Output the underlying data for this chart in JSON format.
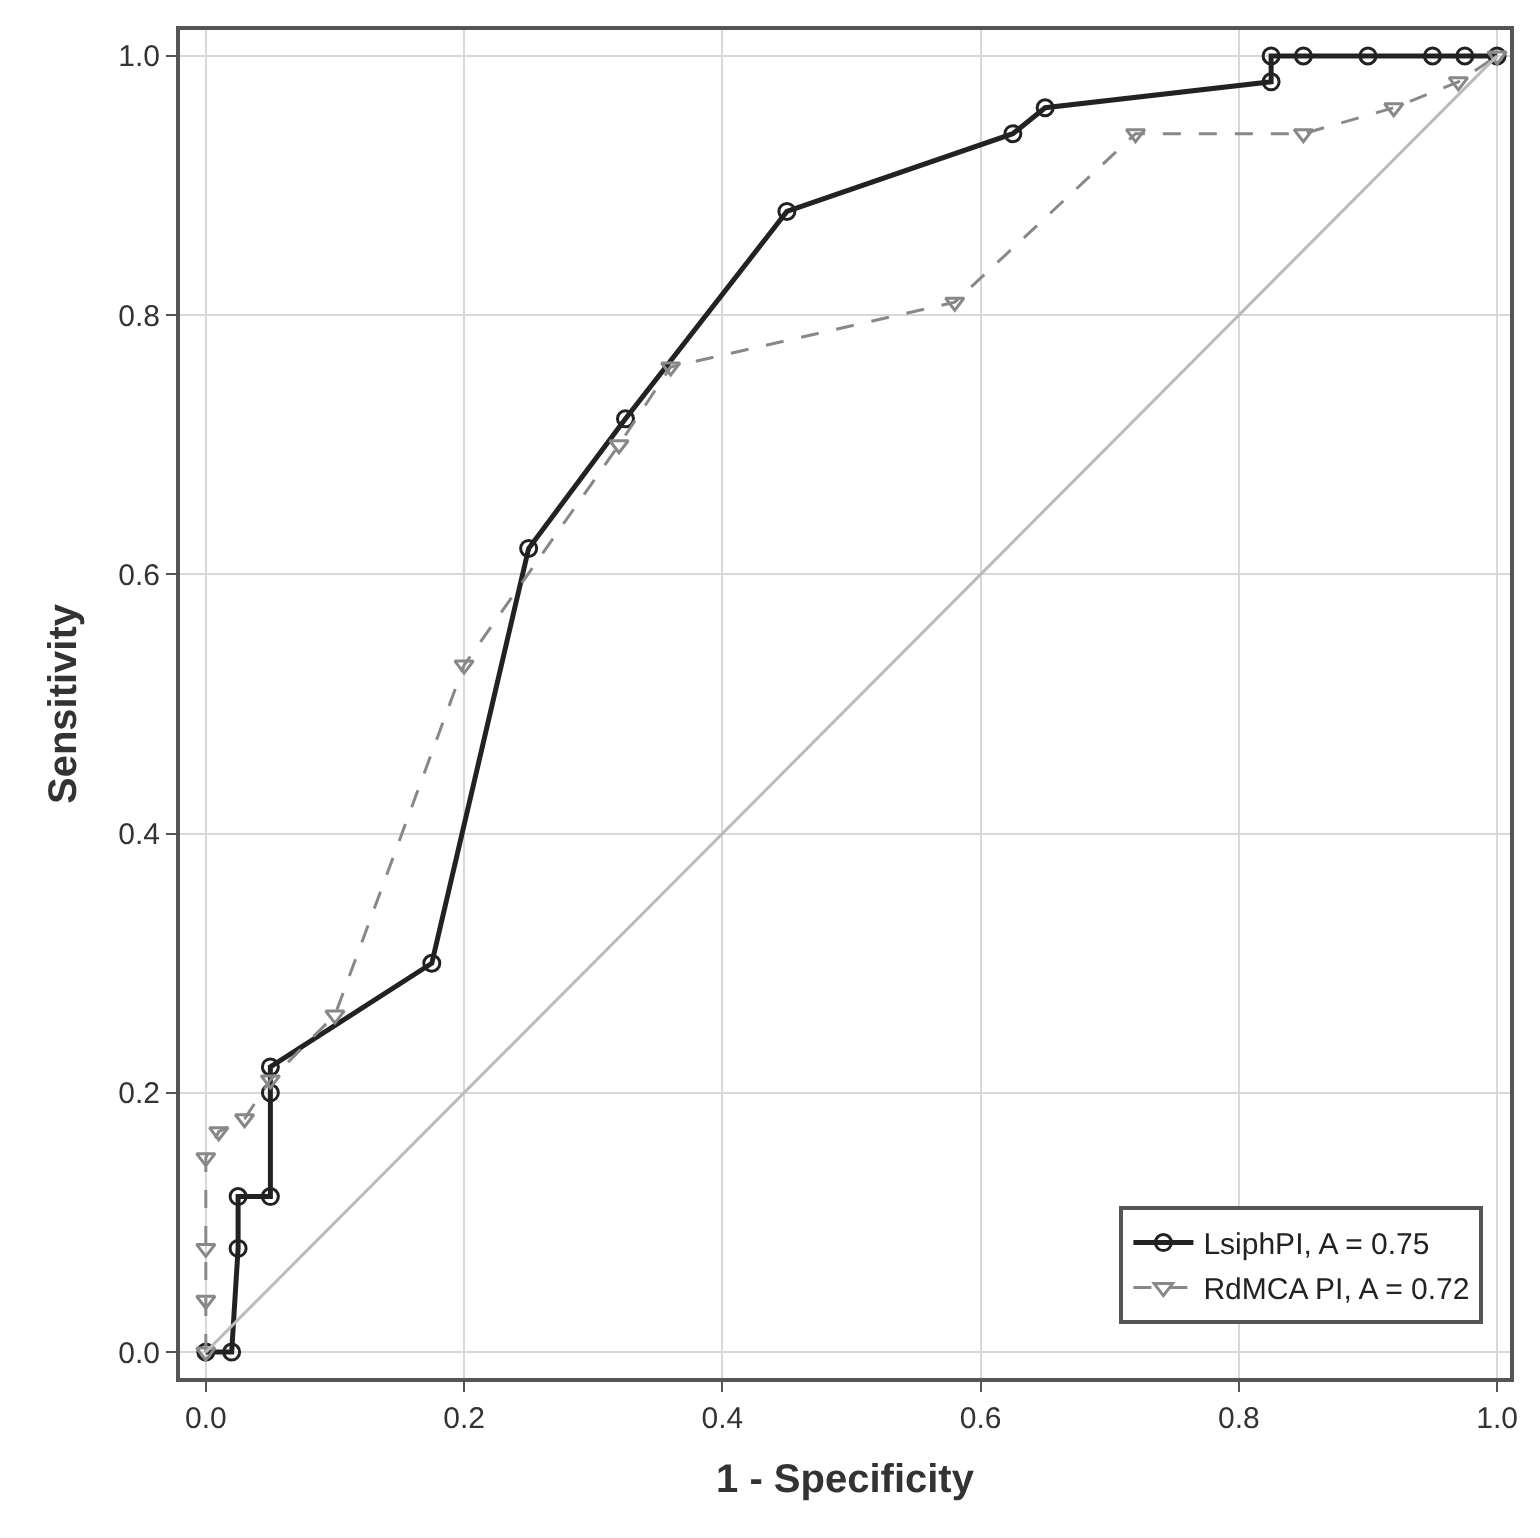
{
  "chart_data": {
    "type": "line",
    "xlabel": "1 - Specificity",
    "ylabel": "Sensitivity",
    "xlim": [
      -0.02,
      1.01
    ],
    "ylim": [
      -0.02,
      1.02
    ],
    "xticks": [
      {
        "value": 0,
        "label": "0.0"
      },
      {
        "value": 0.2,
        "label": "0.2"
      },
      {
        "value": 0.4,
        "label": "0.4"
      },
      {
        "value": 0.6,
        "label": "0.6"
      },
      {
        "value": 0.8,
        "label": "0.8"
      },
      {
        "value": 1,
        "label": "1.0"
      }
    ],
    "yticks": [
      {
        "value": 0,
        "label": "0.0"
      },
      {
        "value": 0.2,
        "label": "0.2"
      },
      {
        "value": 0.4,
        "label": "0.4"
      },
      {
        "value": 0.6,
        "label": "0.6"
      },
      {
        "value": 0.8,
        "label": "0.8"
      },
      {
        "value": 1,
        "label": "1.0"
      }
    ],
    "grid": true,
    "legend": "bottom right",
    "series": [
      {
        "name": "LsiphPI, A = 0.75",
        "color": "#222222",
        "marker": "circle",
        "line_style": "solid",
        "x": [
          0,
          0.02,
          0.025,
          0.025,
          0.05,
          0.05,
          0.05,
          0.175,
          0.25,
          0.325,
          0.45,
          0.625,
          0.65,
          0.825,
          0.825,
          0.85,
          0.9,
          0.95,
          0.975,
          1
        ],
        "values": [
          0,
          0,
          0.08,
          0.12,
          0.12,
          0.2,
          0.22,
          0.3,
          0.62,
          0.72,
          0.88,
          0.94,
          0.96,
          0.98,
          1,
          1,
          1,
          1,
          1,
          1
        ]
      },
      {
        "name": "RdMCA PI, A = 0.72",
        "color": "#888888",
        "marker": "triangle",
        "line_style": "dashed",
        "x": [
          0,
          0,
          0,
          0,
          0.01,
          0.03,
          0.05,
          0.1,
          0.2,
          0.32,
          0.36,
          0.58,
          0.72,
          0.85,
          0.92,
          0.97,
          1
        ],
        "values": [
          0,
          0.04,
          0.08,
          0.15,
          0.17,
          0.18,
          0.21,
          0.26,
          0.53,
          0.7,
          0.76,
          0.81,
          0.94,
          0.94,
          0.96,
          0.98,
          1
        ]
      },
      {
        "color": "#bbbbbb",
        "marker": "none",
        "line_style": "solid",
        "x": [
          0,
          1
        ],
        "values": [
          0,
          1
        ]
      }
    ]
  }
}
